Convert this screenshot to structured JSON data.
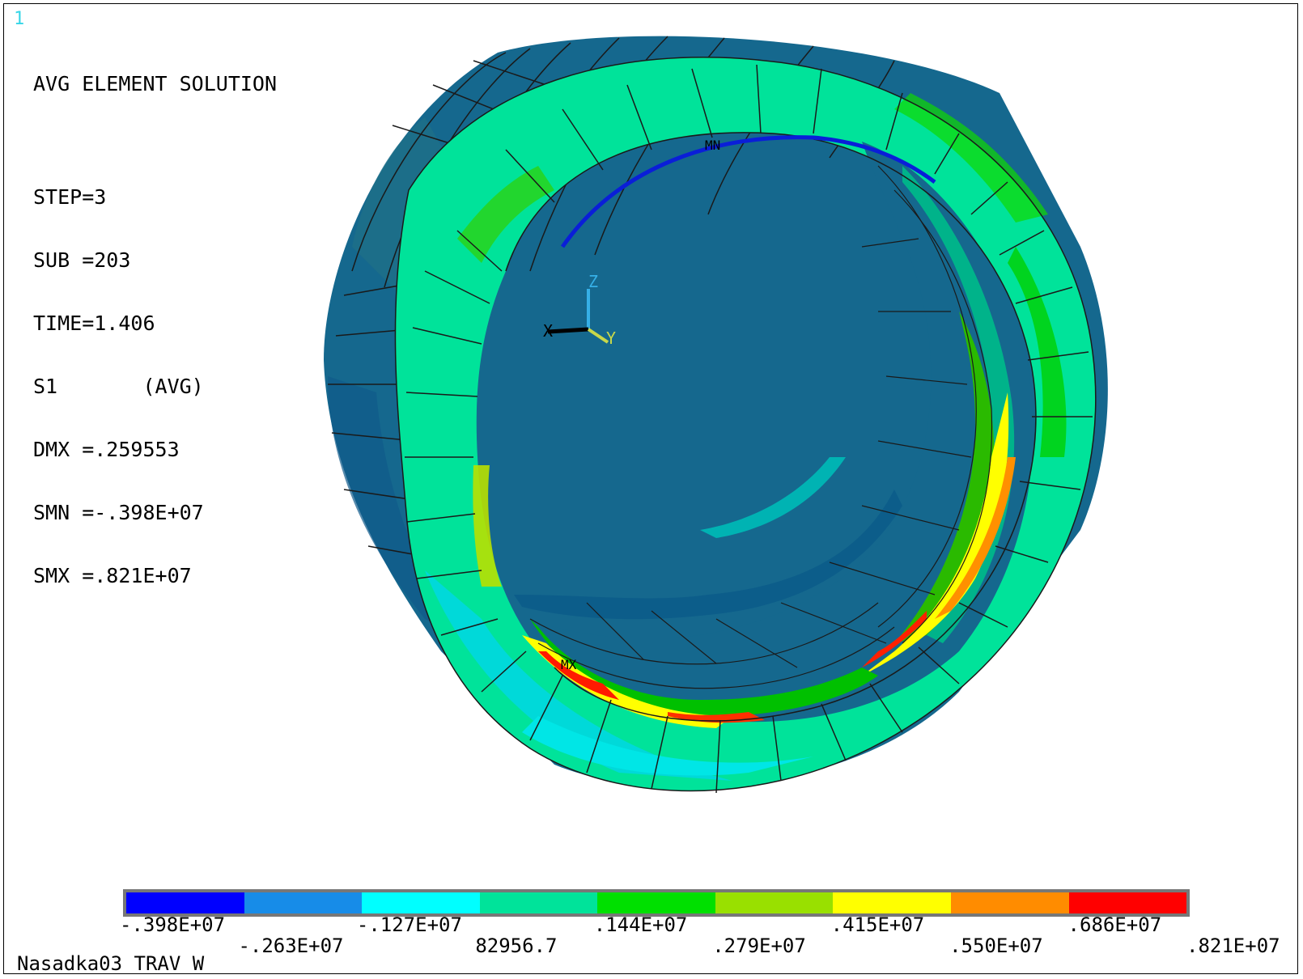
{
  "window_number": "1",
  "header": {
    "title": "AVG ELEMENT SOLUTION",
    "step": "STEP=3",
    "sub": "SUB =203",
    "time": "TIME=1.406",
    "item": "S1       (AVG)",
    "dmx": "DMX =.259553",
    "smn": "SMN =-.398E+07",
    "smx": "SMX =.821E+07"
  },
  "triad": {
    "x": "X",
    "y": "Y",
    "z": "Z"
  },
  "markers": {
    "min": "MN",
    "max": "MX"
  },
  "legend": {
    "colors": [
      "#0000ff",
      "#178ce8",
      "#00ffff",
      "#00e39a",
      "#00e000",
      "#99e000",
      "#ffff00",
      "#ff8c00",
      "#ff0000"
    ],
    "labels": [
      "-.398E+07",
      "-.263E+07",
      "-.127E+07",
      "82956.7",
      ".144E+07",
      ".279E+07",
      ".415E+07",
      ".550E+07",
      ".686E+07",
      ".821E+07"
    ]
  },
  "footer": "Nasadka03 TRAV W"
}
